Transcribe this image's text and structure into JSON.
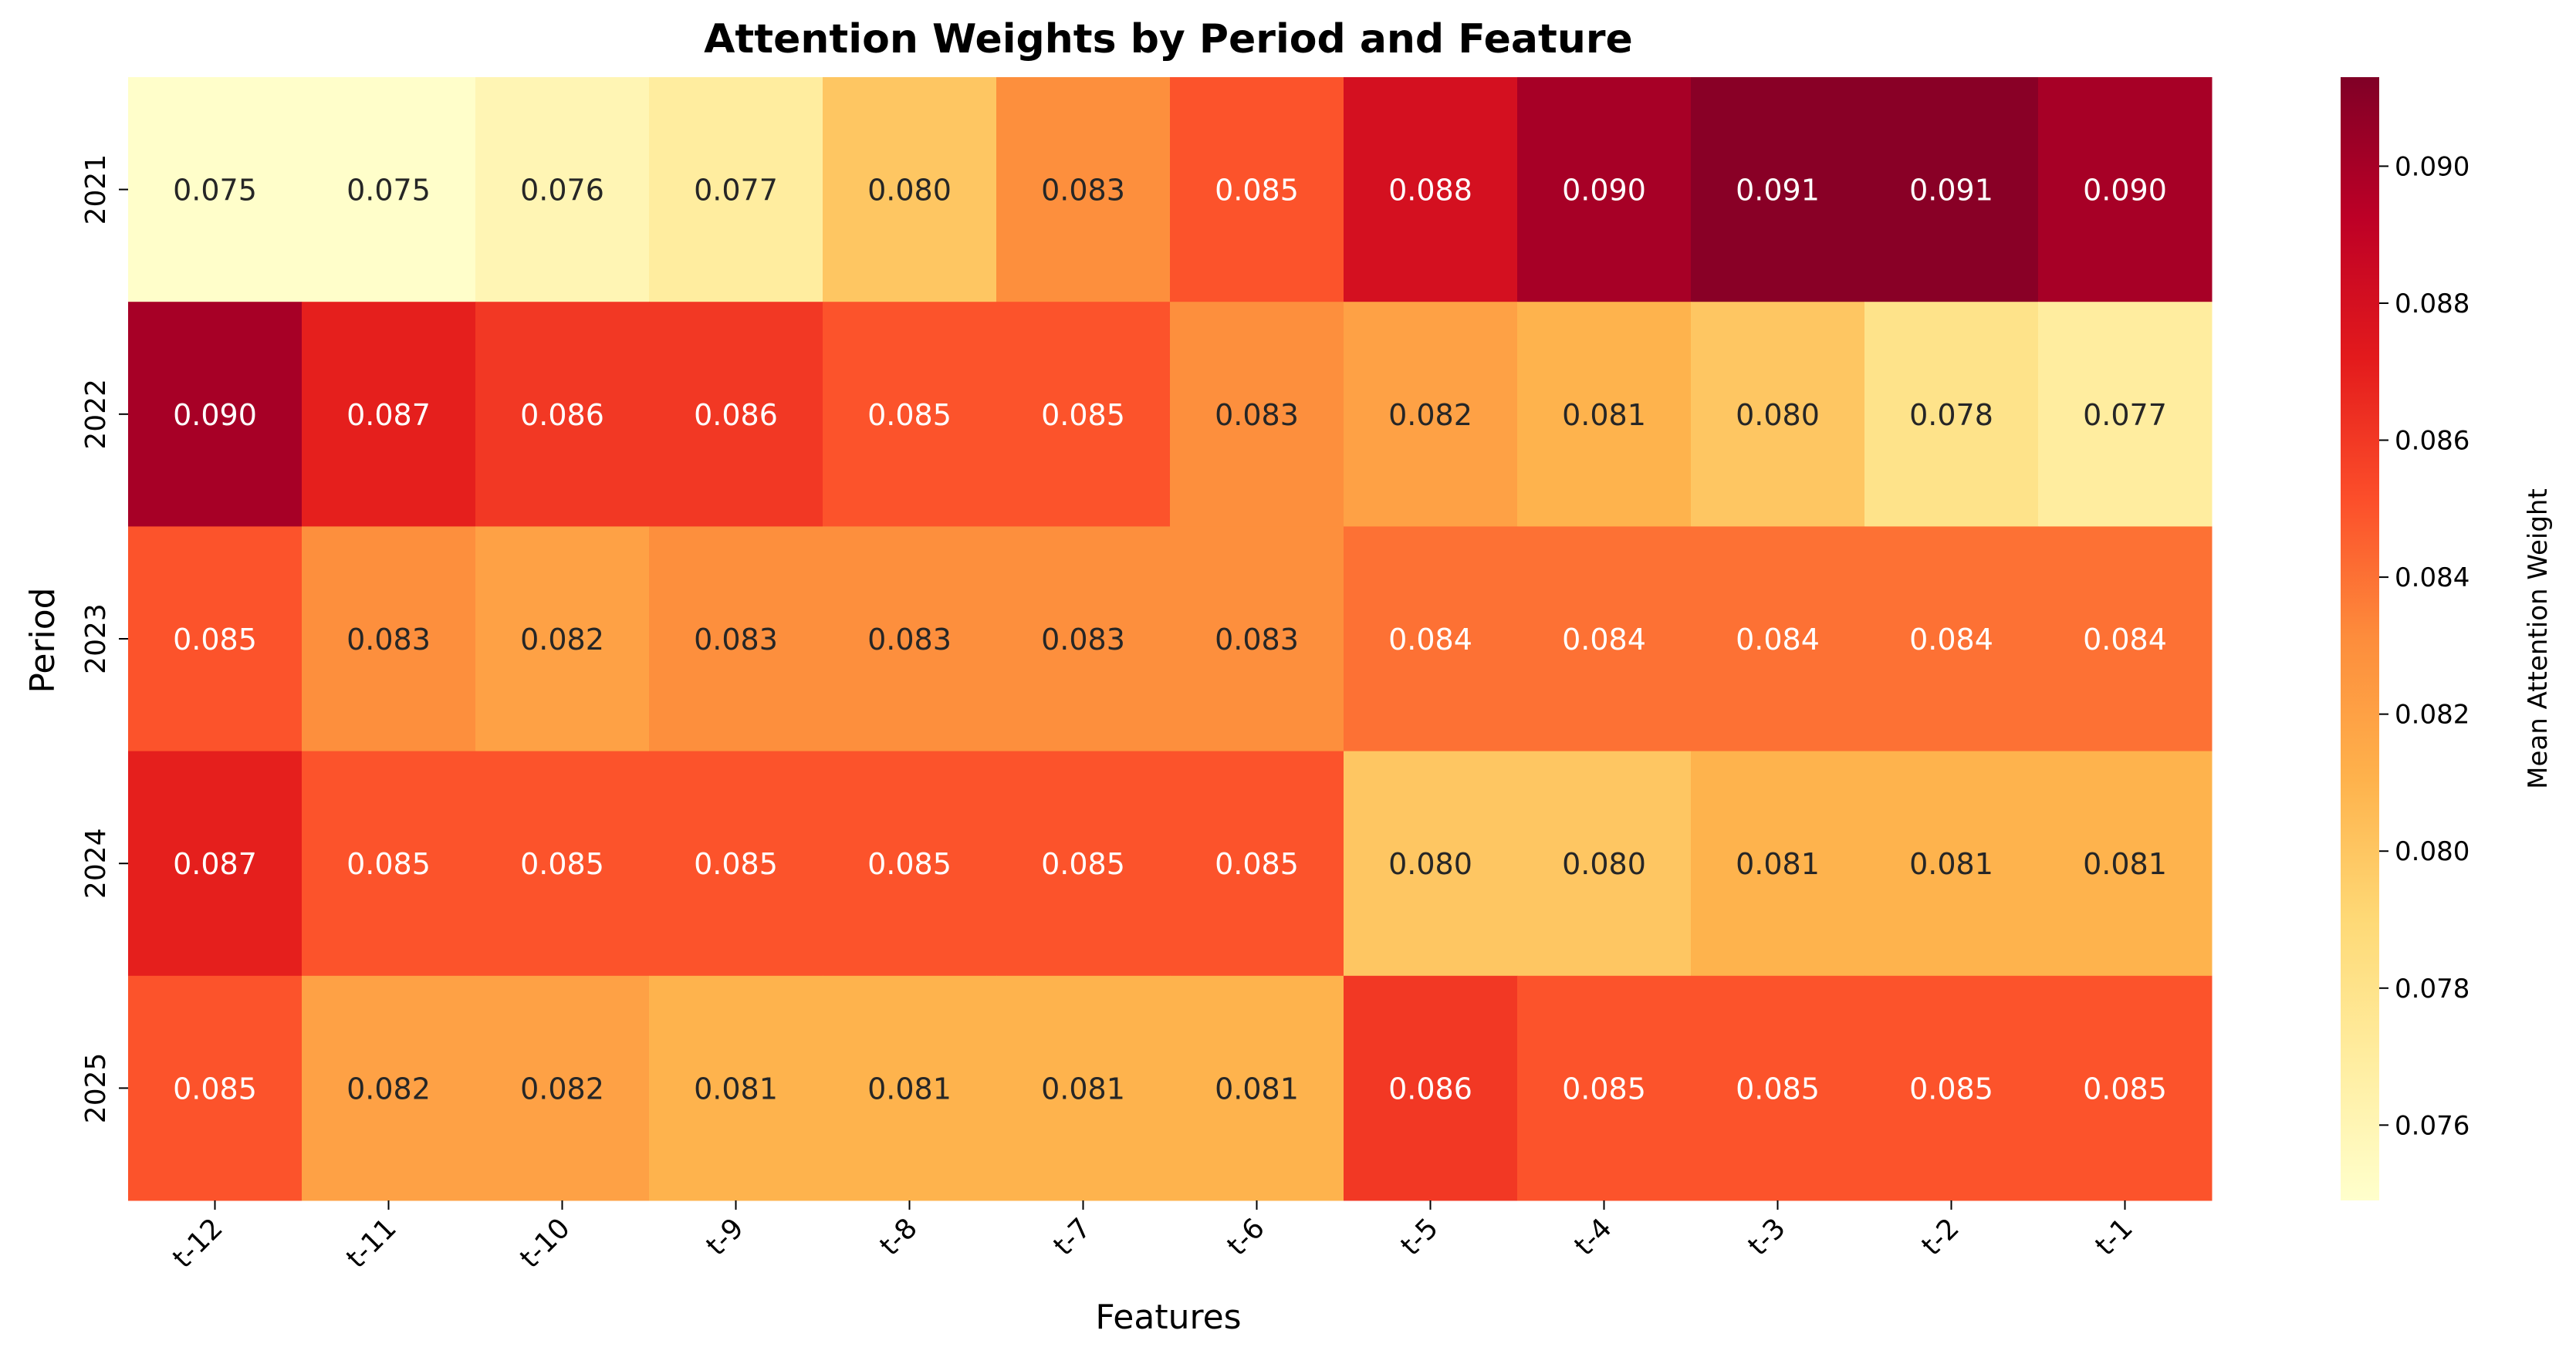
{
  "chart_data": {
    "type": "heatmap",
    "title": "Attention Weights by Period and Feature",
    "xlabel": "Features",
    "ylabel": "Period",
    "x_categories": [
      "t-12",
      "t-11",
      "t-10",
      "t-9",
      "t-8",
      "t-7",
      "t-6",
      "t-5",
      "t-4",
      "t-3",
      "t-2",
      "t-1"
    ],
    "y_categories": [
      "2021",
      "2022",
      "2023",
      "2024",
      "2025"
    ],
    "values": [
      [
        0.075,
        0.075,
        0.076,
        0.077,
        0.08,
        0.083,
        0.085,
        0.088,
        0.09,
        0.091,
        0.091,
        0.09
      ],
      [
        0.09,
        0.087,
        0.086,
        0.086,
        0.085,
        0.085,
        0.083,
        0.082,
        0.081,
        0.08,
        0.078,
        0.077
      ],
      [
        0.085,
        0.083,
        0.082,
        0.083,
        0.083,
        0.083,
        0.083,
        0.084,
        0.084,
        0.084,
        0.084,
        0.084
      ],
      [
        0.087,
        0.085,
        0.085,
        0.085,
        0.085,
        0.085,
        0.085,
        0.08,
        0.08,
        0.081,
        0.081,
        0.081
      ],
      [
        0.085,
        0.082,
        0.082,
        0.081,
        0.081,
        0.081,
        0.081,
        0.086,
        0.085,
        0.085,
        0.085,
        0.085
      ]
    ],
    "colorbar": {
      "label": "Mean Attention Weight",
      "range": [
        0.0749,
        0.0913
      ],
      "ticks": [
        "0.076",
        "0.078",
        "0.080",
        "0.082",
        "0.084",
        "0.086",
        "0.088",
        "0.090"
      ],
      "colormap": "YlOrRd",
      "colors": [
        "#ffffcc",
        "#ffeda0",
        "#fed976",
        "#feb24c",
        "#fd8d3c",
        "#fc4e2a",
        "#e31a1c",
        "#bd0026",
        "#800026"
      ]
    },
    "grid": false,
    "x_tick_rotation_deg": 45
  }
}
